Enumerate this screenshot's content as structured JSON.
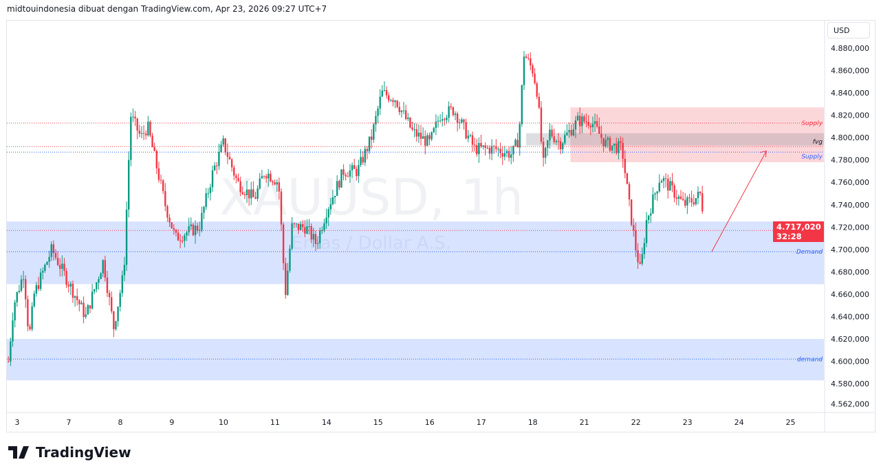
{
  "header": "midtouindonesia dibuat dengan TradingView.com, Apr 23, 2026 09:27 UTC+7",
  "currency": "USD",
  "brand": "TradingView",
  "price_label": {
    "price": "4.717,020",
    "countdown": "32:28"
  },
  "colors": {
    "up": "#089981",
    "down": "#f23645",
    "supply": "#f23645",
    "demand": "#2962ff"
  },
  "chart_data": {
    "type": "candlestick",
    "symbol_watermark": "XAUUSD, 1h",
    "description_watermark": "Emas / Dollar A.S.",
    "ylim": [
      4555,
      4895
    ],
    "y_ticks": [
      "4.880,000",
      "4.860,000",
      "4.840,000",
      "4.820,000",
      "4.800,000",
      "4.780,000",
      "4.760,000",
      "4.740,000",
      "4.720,000",
      "4.700,000",
      "4.680,000",
      "4.660,000",
      "4.640,000",
      "4.620,000",
      "4.600,000",
      "4.580,000",
      "4.562,000"
    ],
    "y_tick_values": [
      4880,
      4860,
      4840,
      4820,
      4800,
      4780,
      4760,
      4740,
      4720,
      4700,
      4680,
      4660,
      4640,
      4620,
      4600,
      4580,
      4562
    ],
    "x_ticks": [
      "3",
      "7",
      "8",
      "9",
      "10",
      "11",
      "14",
      "15",
      "16",
      "17",
      "18",
      "21",
      "22",
      "23",
      "24",
      "25"
    ],
    "price_path": [
      [
        -0.17,
        4600
      ],
      [
        -0.07,
        4650
      ],
      [
        0.13,
        4680
      ],
      [
        0.23,
        4620
      ],
      [
        0.33,
        4660
      ],
      [
        0.67,
        4700
      ],
      [
        1.0,
        4670
      ],
      [
        1.33,
        4640
      ],
      [
        1.67,
        4690
      ],
      [
        1.87,
        4630
      ],
      [
        2.07,
        4680
      ],
      [
        2.2,
        4820
      ],
      [
        2.4,
        4800
      ],
      [
        2.53,
        4810
      ],
      [
        2.87,
        4740
      ],
      [
        3.07,
        4710
      ],
      [
        3.27,
        4715
      ],
      [
        3.53,
        4720
      ],
      [
        3.8,
        4770
      ],
      [
        4.0,
        4795
      ],
      [
        4.27,
        4760
      ],
      [
        4.6,
        4745
      ],
      [
        4.8,
        4770
      ],
      [
        5.07,
        4760
      ],
      [
        5.2,
        4660
      ],
      [
        5.33,
        4720
      ],
      [
        5.6,
        4720
      ],
      [
        5.8,
        4705
      ],
      [
        6.0,
        4735
      ],
      [
        6.33,
        4770
      ],
      [
        6.6,
        4770
      ],
      [
        6.87,
        4800
      ],
      [
        7.07,
        4840
      ],
      [
        7.33,
        4835
      ],
      [
        7.67,
        4805
      ],
      [
        8.0,
        4795
      ],
      [
        8.2,
        4820
      ],
      [
        8.47,
        4825
      ],
      [
        8.87,
        4790
      ],
      [
        9.27,
        4790
      ],
      [
        9.6,
        4785
      ],
      [
        9.73,
        4800
      ],
      [
        9.83,
        4875
      ],
      [
        10.0,
        4860
      ],
      [
        10.09,
        4840
      ],
      [
        10.2,
        4775
      ],
      [
        10.33,
        4805
      ],
      [
        10.53,
        4795
      ],
      [
        10.87,
        4815
      ],
      [
        11.13,
        4815
      ],
      [
        11.4,
        4795
      ],
      [
        11.73,
        4790
      ],
      [
        11.87,
        4740
      ],
      [
        12.0,
        4700
      ],
      [
        12.09,
        4680
      ],
      [
        12.2,
        4725
      ],
      [
        12.47,
        4765
      ],
      [
        12.67,
        4755
      ],
      [
        12.93,
        4740
      ],
      [
        13.13,
        4745
      ],
      [
        13.27,
        4750
      ],
      [
        13.32,
        4717
      ]
    ],
    "zones": [
      {
        "label": "Supply",
        "type": "supply",
        "from": 4778,
        "to": 4827,
        "start_day": 10.73
      },
      {
        "label": "fvg",
        "type": "fvg",
        "from": 4793,
        "to": 4804,
        "start_day": 9.87
      },
      {
        "label": "Demand",
        "type": "demand",
        "from": 4669,
        "to": 4725,
        "start_day": -0.2
      },
      {
        "label": "demand",
        "type": "demand",
        "from": 4583,
        "to": 4620,
        "start_day": -0.2
      }
    ],
    "levels": [
      {
        "price": 4813,
        "color": "red",
        "label": "Supply"
      },
      {
        "price": 4792,
        "color": "red",
        "label": "fvg"
      },
      {
        "price": 4787,
        "color": "blue",
        "label": "Supply"
      },
      {
        "price": 4717,
        "color": "red",
        "label": ""
      },
      {
        "price": 4698,
        "color": "blue",
        "label": "Demand"
      },
      {
        "price": 4602,
        "color": "blue",
        "label": "demand"
      }
    ],
    "arrow": {
      "from": [
        13.47,
        4698
      ],
      "to": [
        14.53,
        4788
      ]
    }
  }
}
